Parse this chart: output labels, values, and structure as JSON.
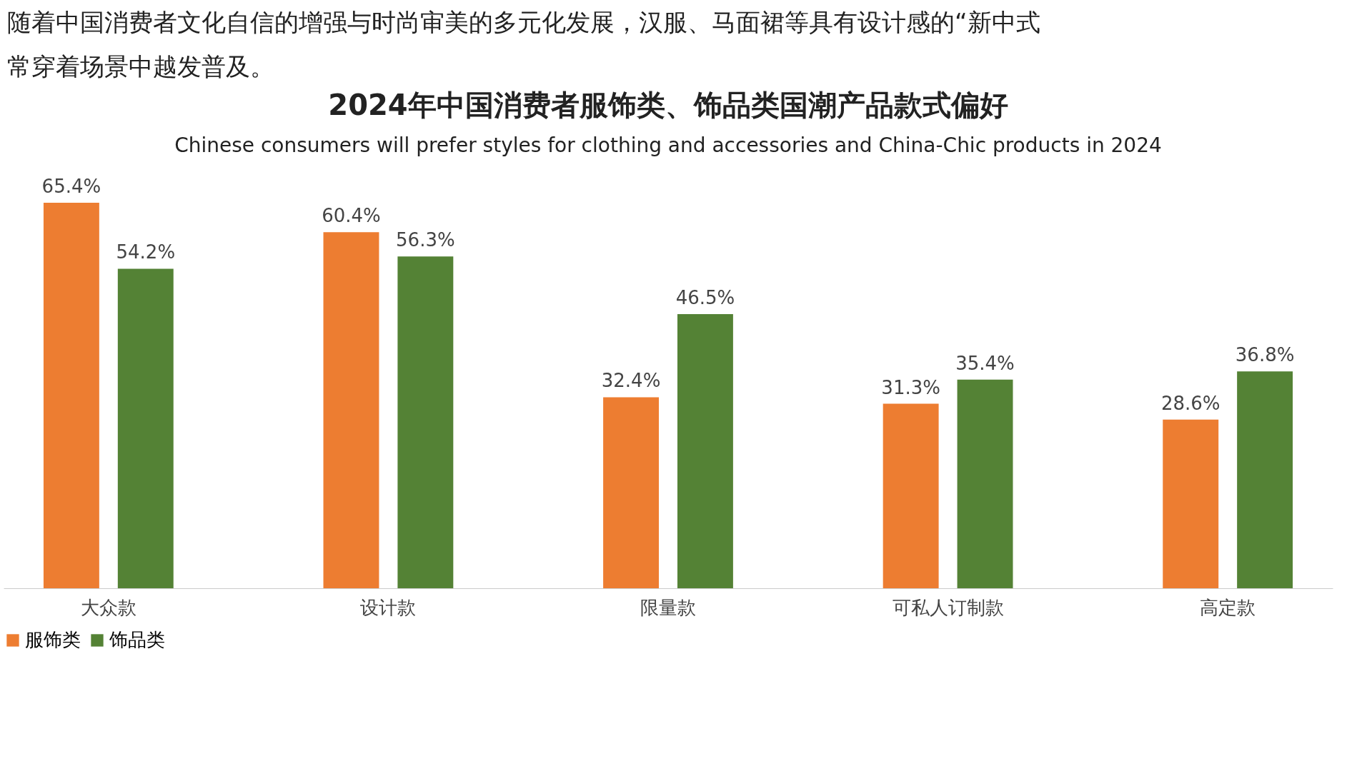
{
  "chart_data": {
    "type": "bar",
    "title": "2024年中国消费者服饰类、饰品类国潮产品款式偏好",
    "subtitle": "Chinese consumers will prefer styles for clothing and accessories and China-Chic products in 2024",
    "annotations": [
      "随着中国消费者文化自信的增强与时尚审美的多元化发展，汉服、马面裙等具有设计感的“新中式",
      "常穿着场景中越发普及。"
    ],
    "categories": [
      "大众款",
      "设计款",
      "限量款",
      "可私人订制款",
      "高定款"
    ],
    "series": [
      {
        "name": "服饰类",
        "color": "#ed7d31",
        "values": [
          65.4,
          60.4,
          32.4,
          31.3,
          28.6
        ],
        "value_labels": [
          "65.4%",
          "60.4%",
          "32.4%",
          "31.3%",
          "28.6%"
        ]
      },
      {
        "name": "饰品类",
        "color": "#548235",
        "values": [
          54.2,
          56.3,
          46.5,
          35.4,
          36.8
        ],
        "value_labels": [
          "54.2%",
          "56.3%",
          "46.5%",
          "35.4%",
          "36.8%"
        ]
      }
    ],
    "legend": "bottom",
    "grid": false
  }
}
